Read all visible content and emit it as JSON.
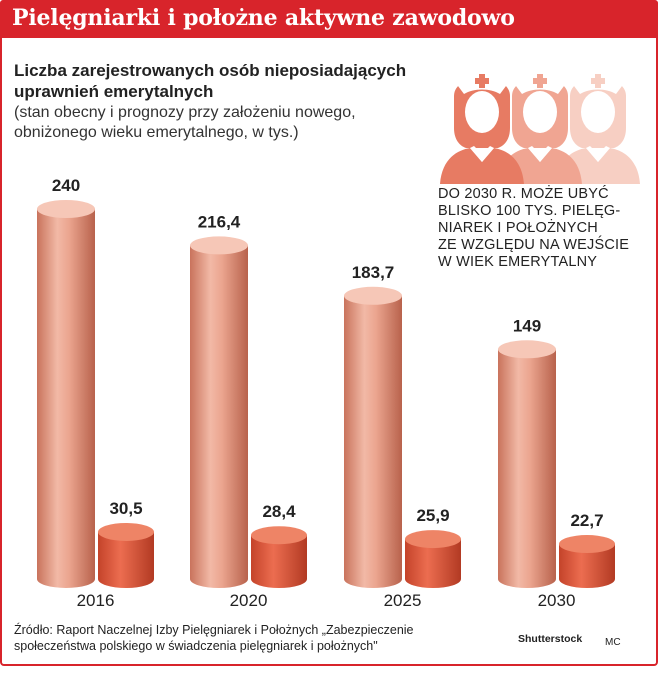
{
  "header": {
    "title": "Pielęgniarki i położne aktywne zawodowo"
  },
  "chart_data": {
    "type": "bar",
    "title": "Liczba zarejestrowanych osób nieposiadających uprawnień emerytalnych",
    "subtitle": "(stan obecny i prognozy przy założeniu nowego, obniżonego wieku emerytalnego, w tys.)",
    "categories": [
      "2016",
      "2020",
      "2025",
      "2030"
    ],
    "series": [
      {
        "values": [
          240,
          216.4,
          183.7,
          149
        ],
        "labels": [
          "240",
          "216,4",
          "183,7",
          "149"
        ],
        "color": "#e89a80"
      },
      {
        "values": [
          30.5,
          28.4,
          25.9,
          22.7
        ],
        "labels": [
          "30,5",
          "28,4",
          "25,9",
          "22,7"
        ],
        "color": "#e0573b"
      }
    ],
    "ylim": [
      0,
      240
    ],
    "grid": false,
    "legend": "none"
  },
  "annotation": {
    "lines": [
      "DO 2030 R. MOŻE UBYĆ",
      "BLISKO 100 TYS. PIELĘG-",
      "NIAREK I POŁOŻNYCH",
      "ZE WZGLĘDU NA WEJŚCIE",
      "W WIEK EMERYTALNY"
    ]
  },
  "illustration": {
    "icon": "nurse-icon",
    "count": 3,
    "colors": [
      "#e77b63",
      "#f0a592",
      "#f7cfc3"
    ]
  },
  "footer": {
    "source_line1": "Źródło: Raport Naczelnej Izby Pielęgniarek i Położnych „Zabezpieczenie",
    "source_line2": "społeczeństwa polskiego w świadczenia pielęgniarek i położnych\"",
    "credit": "Shutterstock",
    "author": "MC"
  },
  "colors": {
    "accent": "#d8242b"
  }
}
